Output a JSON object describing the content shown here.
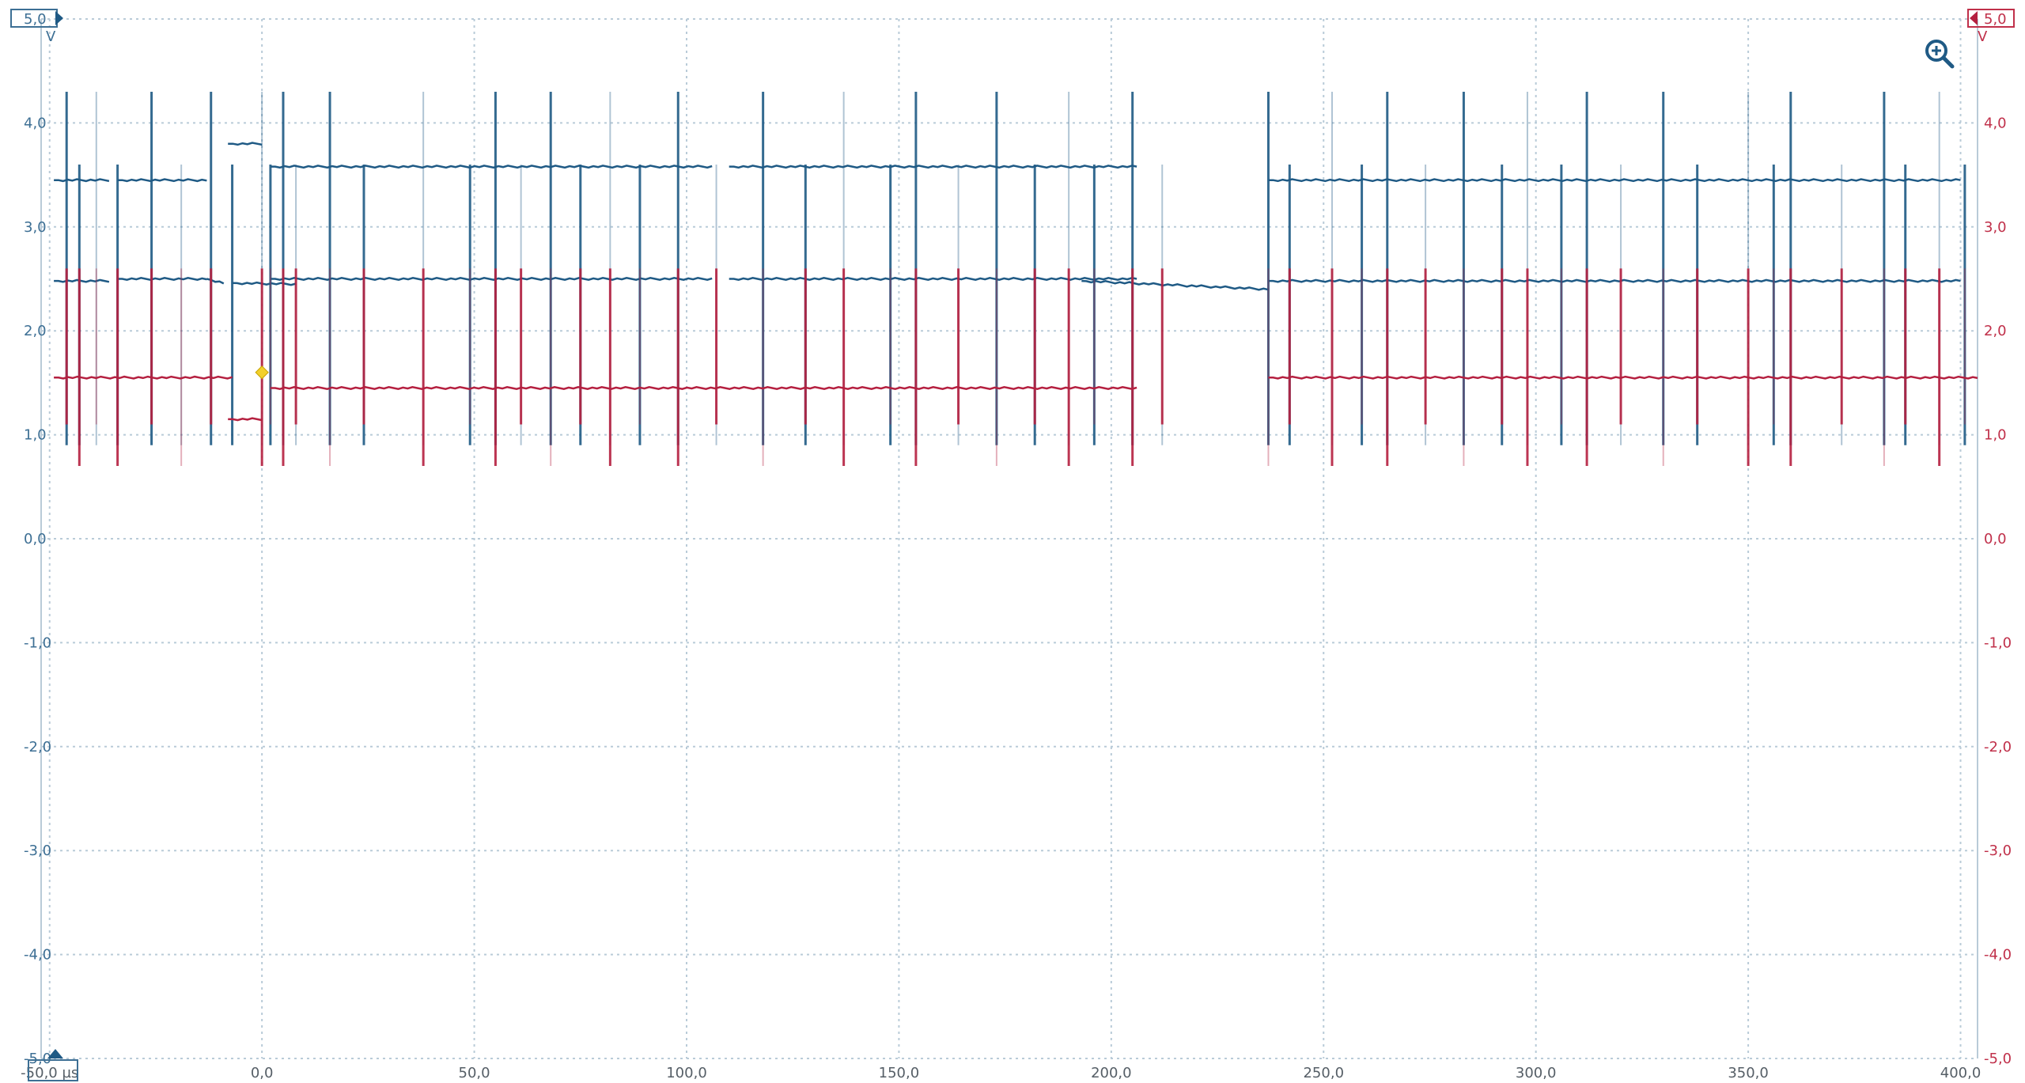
{
  "chart_data": {
    "type": "line",
    "y_unit": "V",
    "y_unit_right": "V",
    "x_unit": "µs",
    "xlim": [
      -52,
      404
    ],
    "ylim": [
      -5.0,
      5.0
    ],
    "grid": true,
    "y_ticks_left": [
      {
        "v": 5.0,
        "label": "5,0"
      },
      {
        "v": 4.0,
        "label": "4,0"
      },
      {
        "v": 3.0,
        "label": "3,0"
      },
      {
        "v": 2.0,
        "label": "2,0"
      },
      {
        "v": 1.0,
        "label": "1,0"
      },
      {
        "v": 0.0,
        "label": "0,0"
      },
      {
        "v": -1.0,
        "label": "-1,0"
      },
      {
        "v": -2.0,
        "label": "-2,0"
      },
      {
        "v": -3.0,
        "label": "-3,0"
      },
      {
        "v": -4.0,
        "label": "-4,0"
      },
      {
        "v": -5.0,
        "label": "-5,0"
      }
    ],
    "y_ticks_right": [
      {
        "v": 5.0,
        "label": "5,0"
      },
      {
        "v": 4.0,
        "label": "4,0"
      },
      {
        "v": 3.0,
        "label": "3,0"
      },
      {
        "v": 2.0,
        "label": "2,0"
      },
      {
        "v": 1.0,
        "label": "1,0"
      },
      {
        "v": 0.0,
        "label": "0,0"
      },
      {
        "v": -1.0,
        "label": "-1,0"
      },
      {
        "v": -2.0,
        "label": "-2,0"
      },
      {
        "v": -3.0,
        "label": "-3,0"
      },
      {
        "v": -4.0,
        "label": "-4,0"
      },
      {
        "v": -5.0,
        "label": "-5,0"
      }
    ],
    "x_ticks": [
      {
        "v": -50,
        "label": "-50,0 µs"
      },
      {
        "v": 0,
        "label": "0,0"
      },
      {
        "v": 50,
        "label": "50,0"
      },
      {
        "v": 100,
        "label": "100,0"
      },
      {
        "v": 150,
        "label": "150,0"
      },
      {
        "v": 200,
        "label": "200,0"
      },
      {
        "v": 250,
        "label": "250,0"
      },
      {
        "v": 300,
        "label": "300,0"
      },
      {
        "v": 350,
        "label": "350,0"
      },
      {
        "v": 400,
        "label": "400,0"
      }
    ],
    "series": [
      {
        "color": "#1f5a85",
        "segments": [
          {
            "x0": -49,
            "x1": -36,
            "high": 3.45,
            "mid": 2.48
          },
          {
            "x0": -34,
            "x1": -13,
            "high": 3.45,
            "mid": 2.5
          },
          {
            "x0": -13,
            "x1": -9,
            "mid": 2.5,
            "end": 2.46
          },
          {
            "x0": -7,
            "x1": 8,
            "mid_level": 2.46,
            "end": 2.45
          },
          {
            "x0": -8,
            "x1": 0,
            "high": 3.8
          },
          {
            "x0": 2,
            "x1": 106,
            "high": 3.58,
            "mid": 2.5
          },
          {
            "x0": 110,
            "x1": 206,
            "high": 3.58,
            "mid": 2.5
          },
          {
            "x0": 193,
            "x1": 237,
            "mid": 2.48,
            "end": 2.4
          },
          {
            "x0": 237,
            "x1": 400,
            "high": 3.45,
            "mid": 2.48
          }
        ],
        "edges": [
          -46,
          -43,
          -39,
          -34,
          -26,
          -19,
          -12,
          -7,
          0,
          2,
          5,
          8,
          16,
          24,
          38,
          49,
          55,
          61,
          68,
          75,
          82,
          89,
          98,
          107,
          118,
          128,
          137,
          148,
          154,
          164,
          173,
          182,
          190,
          196,
          205,
          212,
          237,
          242,
          252,
          259,
          265,
          274,
          283,
          292,
          298,
          306,
          312,
          320,
          330,
          338,
          350,
          356,
          360,
          372,
          382,
          387,
          395,
          401
        ]
      },
      {
        "color": "#b52040",
        "segments": [
          {
            "x0": -49,
            "x1": -7,
            "low": 1.55
          },
          {
            "x0": -8,
            "x1": 0,
            "low": 1.15
          },
          {
            "x0": 2,
            "x1": 206,
            "low": 1.45
          },
          {
            "x0": 237,
            "x1": 404,
            "low": 1.55
          }
        ],
        "edges": [
          -46,
          -43,
          -39,
          -34,
          -26,
          -19,
          -12,
          0,
          2,
          5,
          8,
          16,
          24,
          38,
          49,
          55,
          61,
          68,
          75,
          82,
          89,
          98,
          107,
          118,
          128,
          137,
          148,
          154,
          164,
          173,
          182,
          190,
          196,
          205,
          212,
          237,
          242,
          252,
          259,
          265,
          274,
          283,
          292,
          298,
          306,
          312,
          320,
          330,
          338,
          350,
          356,
          360,
          372,
          382,
          387,
          395,
          401
        ]
      }
    ],
    "trigger_marker": {
      "x": 0,
      "y": 1.6,
      "color": "#f2d02b"
    }
  },
  "ui": {
    "left_axis_color": "#3d6f94",
    "right_axis_color": "#c0304a",
    "grid_color": "#b9cbd8",
    "zoom_icon": "zoom-in-icon"
  }
}
